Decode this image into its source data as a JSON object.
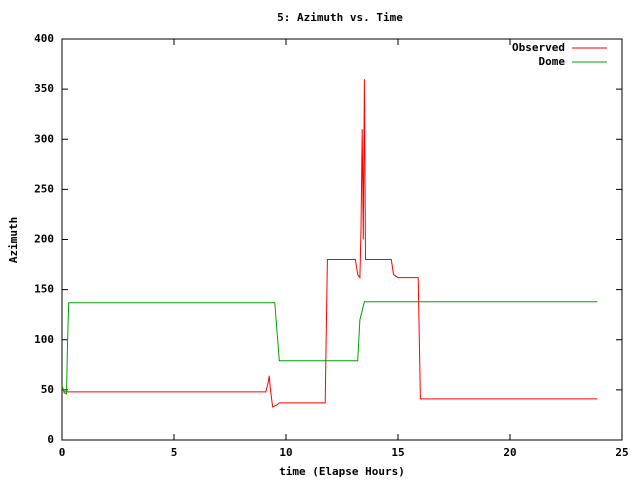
{
  "chart_data": {
    "type": "line",
    "title": "5: Azimuth vs. Time",
    "x_label": "time (Elapse Hours)",
    "y_label": "Azimuth",
    "xlim": [
      0,
      25
    ],
    "xticks": [
      0,
      5,
      10,
      15,
      20,
      25
    ],
    "ylim": [
      0,
      400
    ],
    "yticks": [
      0,
      50,
      100,
      150,
      200,
      250,
      300,
      350,
      400
    ],
    "legend": "upper right",
    "series": [
      {
        "name": "Observed",
        "color": "#ff0000",
        "x": [
          0,
          0.1,
          9.1,
          9.2,
          9.25,
          9.3,
          9.4,
          9.6,
          9.7,
          11.75,
          11.8,
          11.85,
          13.1,
          13.2,
          13.3,
          13.35,
          13.4,
          13.45,
          13.5,
          13.55,
          14.7,
          14.8,
          15,
          15.9,
          16,
          23.9
        ],
        "values": [
          52,
          48,
          48,
          57,
          64,
          52,
          33,
          35,
          37,
          37,
          110,
          180,
          180,
          165,
          162,
          210,
          310,
          200,
          360,
          180,
          180,
          165,
          162,
          162,
          41,
          41
        ]
      },
      {
        "name": "Dome",
        "color": "#00a000",
        "x": [
          0,
          0.1,
          0.2,
          0.25,
          0.3,
          9.5,
          9.7,
          13.2,
          13.3,
          13.5,
          23.9
        ],
        "values": [
          55,
          47,
          46,
          100,
          137,
          137,
          79,
          79,
          120,
          138,
          138
        ]
      }
    ]
  }
}
